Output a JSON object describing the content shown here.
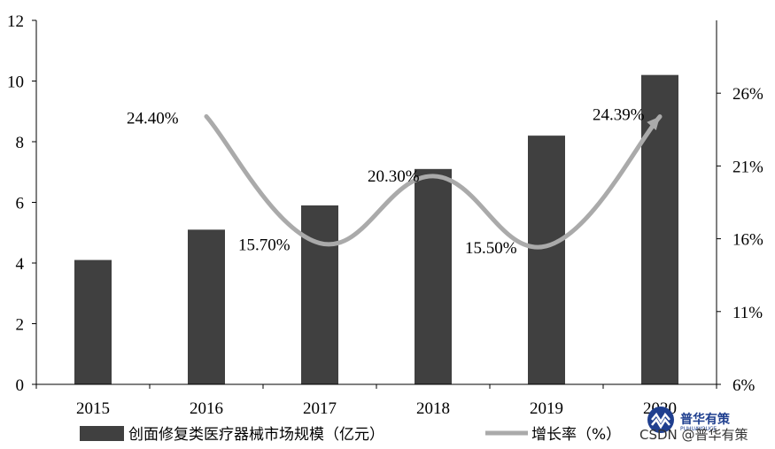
{
  "chart_data": {
    "type": "bar",
    "categories": [
      "2015",
      "2016",
      "2017",
      "2018",
      "2019",
      "2020"
    ],
    "series": [
      {
        "name": "创面修复类医疗器械市场规模（亿元）",
        "type": "bar",
        "axis": "left",
        "values": [
          4.1,
          5.1,
          5.9,
          7.1,
          8.2,
          10.2
        ]
      },
      {
        "name": "增长率（%）",
        "type": "line",
        "axis": "right",
        "values": [
          null,
          24.4,
          15.7,
          20.3,
          15.5,
          24.39
        ],
        "labels": [
          "",
          "24.40%",
          "15.70%",
          "20.30%",
          "15.50%",
          "24.39%"
        ]
      }
    ],
    "y_left": {
      "ylim": [
        0,
        12
      ],
      "ticks": [
        "0",
        "2",
        "4",
        "6",
        "8",
        "10",
        "12"
      ]
    },
    "y_right": {
      "ylim": [
        6,
        31
      ],
      "ticks": [
        "6%",
        "11%",
        "16%",
        "21%",
        "26%"
      ],
      "tick_values": [
        6,
        11,
        16,
        21,
        26
      ]
    },
    "legend_placement": "bottom",
    "grid": false,
    "colors": {
      "bar": "#404040",
      "line": "#aaaaaa"
    }
  },
  "watermark": {
    "text": "CSDN @普华有策",
    "logo_text": "普华有策",
    "logo_sub": "PUHUAYOUCE"
  }
}
